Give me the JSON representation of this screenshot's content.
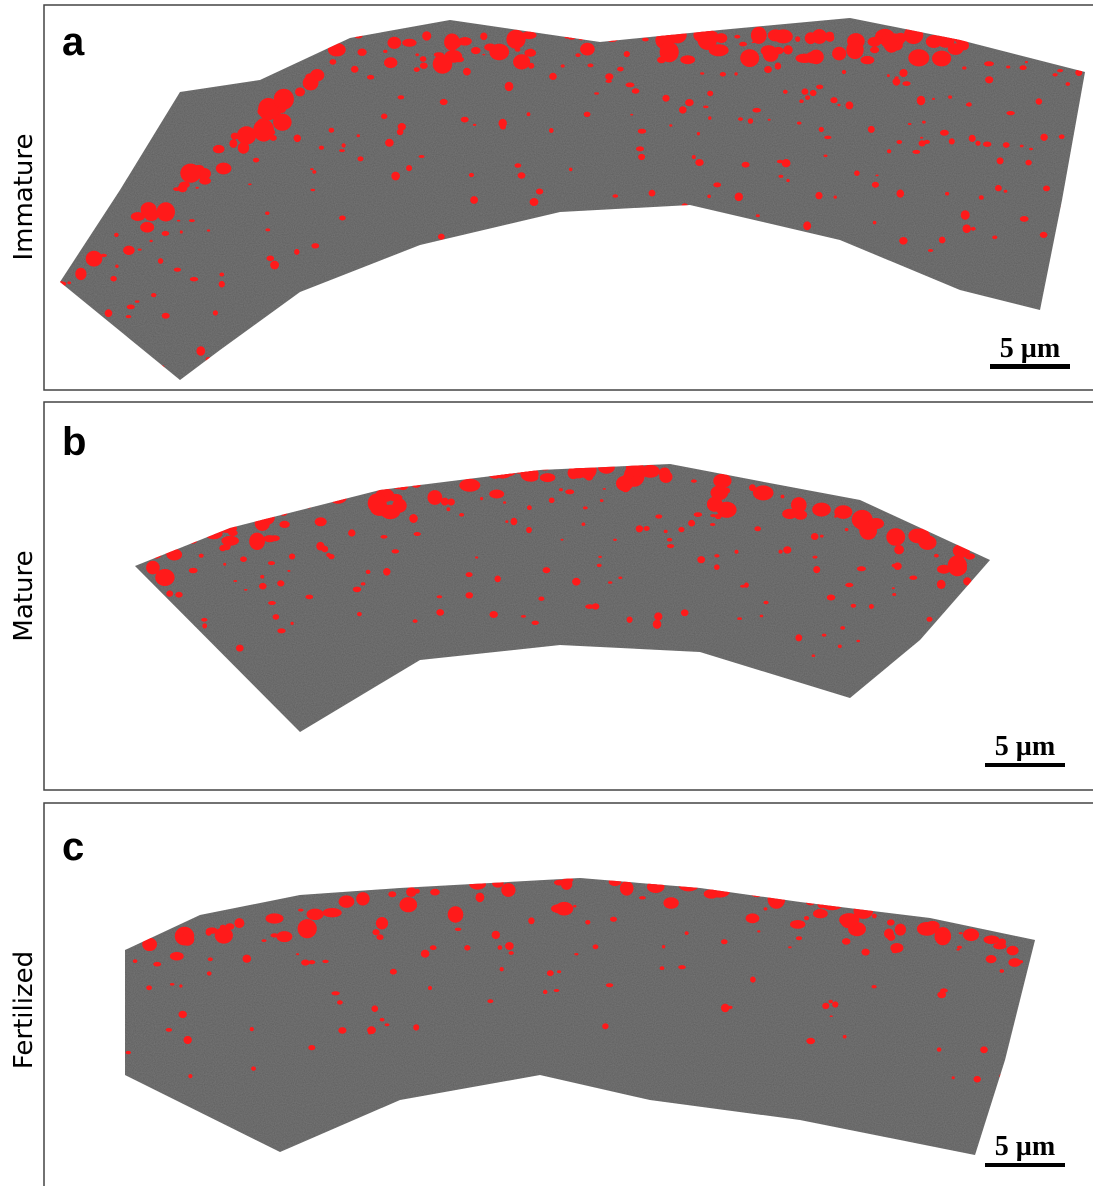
{
  "panels": [
    {
      "letter": "a",
      "label": "Immature",
      "scale_bar": "5 µm"
    },
    {
      "letter": "b",
      "label": "Mature",
      "scale_bar": "5 µm"
    },
    {
      "letter": "c",
      "label": "Fertilized",
      "scale_bar": "5 µm"
    }
  ]
}
